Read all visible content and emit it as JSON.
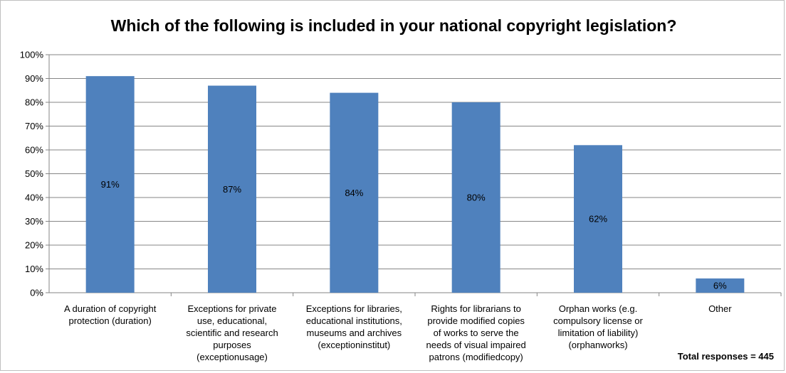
{
  "chart_data": {
    "type": "bar",
    "title": "Which of the following is included in your national copyright legislation?",
    "categories": [
      "A duration of copyright\nprotection (duration)",
      "Exceptions for private\nuse, educational,\nscientific and research\npurposes\n(exceptionusage)",
      "Exceptions for libraries,\neducational institutions,\nmuseums and archives\n(exceptioninstitut)",
      "Rights for librarians to\nprovide modified copies\nof works to serve the\nneeds of visual impaired\npatrons (modifiedcopy)",
      "Orphan works (e.g.\ncompulsory license or\nlimitation of liability)\n(orphanworks)",
      "Other"
    ],
    "values": [
      91,
      87,
      84,
      80,
      62,
      6
    ],
    "data_labels": [
      "91%",
      "87%",
      "84%",
      "80%",
      "62%",
      "6%"
    ],
    "ylim": [
      0,
      100
    ],
    "yticks": [
      "0%",
      "10%",
      "20%",
      "30%",
      "40%",
      "50%",
      "60%",
      "70%",
      "80%",
      "90%",
      "100%"
    ],
    "xlabel": "",
    "ylabel": "",
    "grid": true,
    "legend": "none",
    "bar_color": "#4f81bd",
    "grid_color": "#868686",
    "annotation": "Total responses =  445"
  }
}
